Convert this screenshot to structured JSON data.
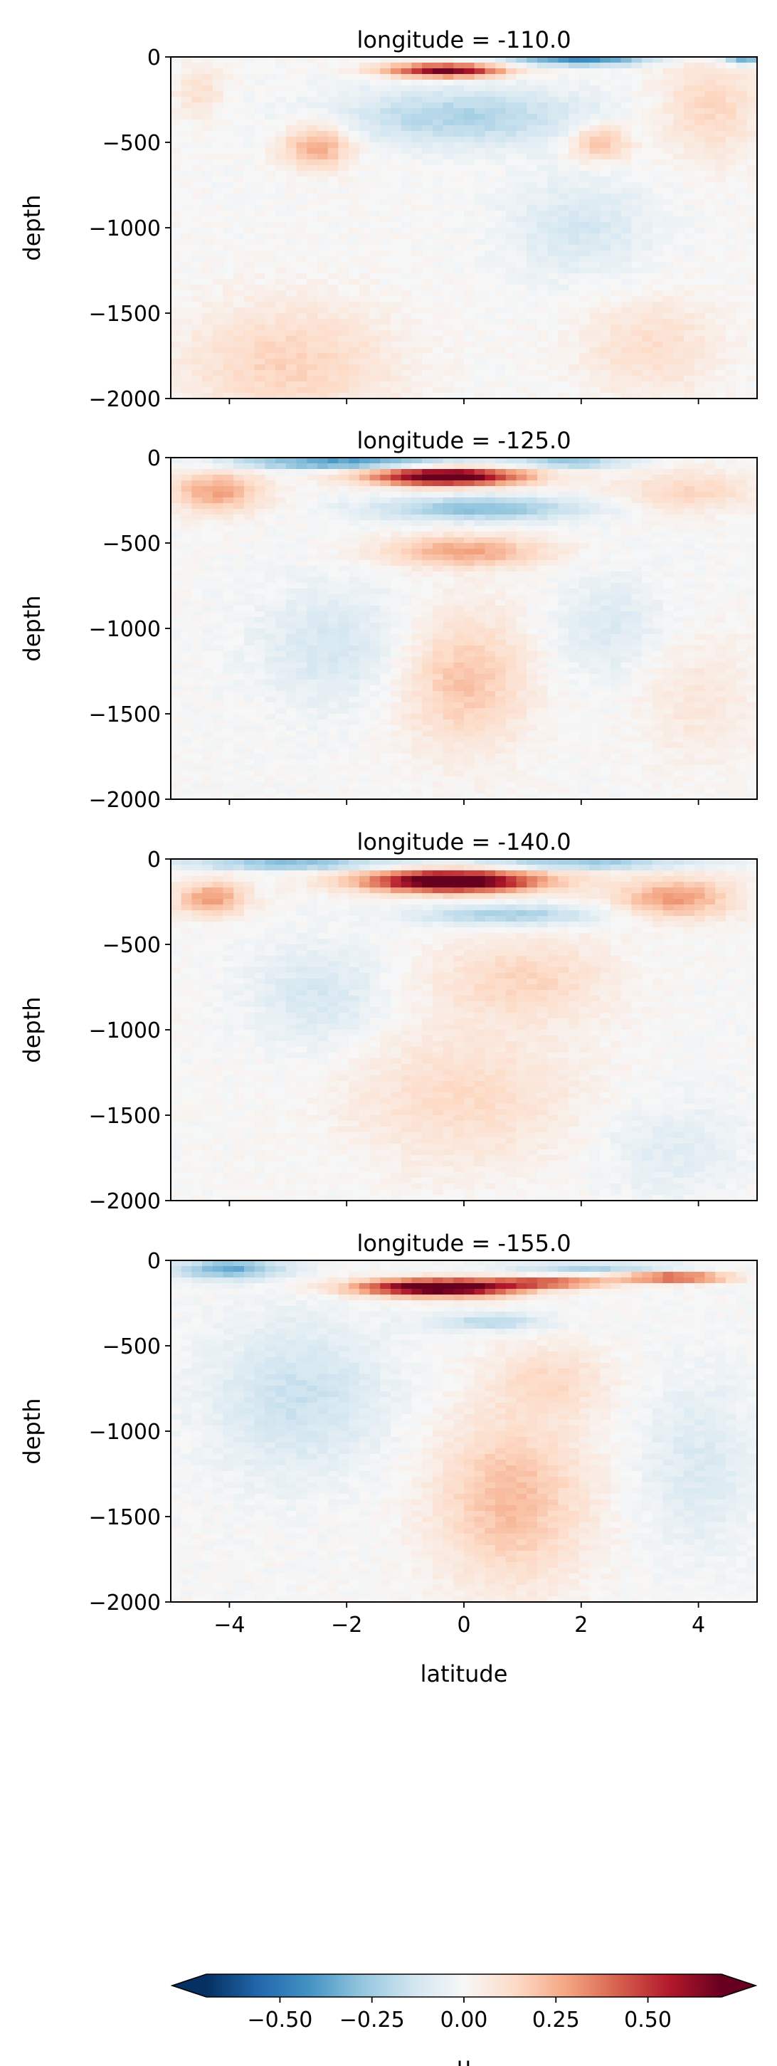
{
  "chart_data": {
    "type": "heatmap",
    "variable": "u",
    "x": {
      "label": "latitude",
      "range": [
        -5,
        5
      ],
      "ticks": [
        -4,
        -2,
        0,
        2,
        4
      ],
      "tick_labels": [
        "−4",
        "−2",
        "0",
        "2",
        "4"
      ]
    },
    "y": {
      "label": "depth",
      "range": [
        -2000,
        0
      ],
      "ticks": [
        0,
        -500,
        -1000,
        -1500,
        -2000
      ],
      "tick_labels": [
        "0",
        "−500",
        "−1000",
        "−1500",
        "−2000"
      ]
    },
    "panels": [
      {
        "title": "longitude = -110.0",
        "longitude": -110.0,
        "features": [
          {
            "kind": "core",
            "lat": -0.3,
            "depth": -80,
            "lat_radius": 1.0,
            "depth_radius": 40,
            "u": 0.7
          },
          {
            "kind": "blob",
            "lat": 0.0,
            "depth": -350,
            "lat_radius": 2.2,
            "depth_radius": 170,
            "u": -0.22
          },
          {
            "kind": "blob",
            "lat": 2.0,
            "depth": -25,
            "lat_radius": 1.2,
            "depth_radius": 25,
            "u": -0.5
          },
          {
            "kind": "blob",
            "lat": 4.8,
            "depth": -25,
            "lat_radius": 0.4,
            "depth_radius": 20,
            "u": -0.45
          },
          {
            "kind": "blob",
            "lat": -2.5,
            "depth": -520,
            "lat_radius": 0.6,
            "depth_radius": 130,
            "u": 0.28
          },
          {
            "kind": "blob",
            "lat": 2.3,
            "depth": -500,
            "lat_radius": 0.5,
            "depth_radius": 110,
            "u": 0.25
          },
          {
            "kind": "blob",
            "lat": 4.2,
            "depth": -300,
            "lat_radius": 0.9,
            "depth_radius": 300,
            "u": 0.15
          },
          {
            "kind": "blob",
            "lat": -4.5,
            "depth": -200,
            "lat_radius": 0.4,
            "depth_radius": 150,
            "u": 0.12
          },
          {
            "kind": "blob",
            "lat": -3.0,
            "depth": -1800,
            "lat_radius": 1.8,
            "depth_radius": 350,
            "u": 0.16
          },
          {
            "kind": "blob",
            "lat": 2.0,
            "depth": -1000,
            "lat_radius": 1.2,
            "depth_radius": 300,
            "u": -0.12
          },
          {
            "kind": "blob",
            "lat": 3.2,
            "depth": -1700,
            "lat_radius": 1.2,
            "depth_radius": 300,
            "u": 0.12
          }
        ]
      },
      {
        "title": "longitude = -125.0",
        "longitude": -125.0,
        "features": [
          {
            "kind": "core",
            "lat": -0.3,
            "depth": -110,
            "lat_radius": 1.3,
            "depth_radius": 55,
            "u": 0.8
          },
          {
            "kind": "blob",
            "lat": -2.0,
            "depth": -30,
            "lat_radius": 2.0,
            "depth_radius": 35,
            "u": -0.45
          },
          {
            "kind": "blob",
            "lat": 1.8,
            "depth": -30,
            "lat_radius": 1.0,
            "depth_radius": 30,
            "u": -0.3
          },
          {
            "kind": "blob",
            "lat": 0.3,
            "depth": -300,
            "lat_radius": 1.8,
            "depth_radius": 70,
            "u": -0.3
          },
          {
            "kind": "blob",
            "lat": 0.0,
            "depth": -550,
            "lat_radius": 1.4,
            "depth_radius": 90,
            "u": 0.28
          },
          {
            "kind": "blob",
            "lat": -4.2,
            "depth": -200,
            "lat_radius": 0.8,
            "depth_radius": 120,
            "u": 0.28
          },
          {
            "kind": "blob",
            "lat": 3.8,
            "depth": -200,
            "lat_radius": 1.2,
            "depth_radius": 120,
            "u": 0.15
          },
          {
            "kind": "blob",
            "lat": -2.2,
            "depth": -1100,
            "lat_radius": 1.3,
            "depth_radius": 350,
            "u": -0.12
          },
          {
            "kind": "blob",
            "lat": 0.0,
            "depth": -1300,
            "lat_radius": 1.1,
            "depth_radius": 400,
            "u": 0.2
          },
          {
            "kind": "blob",
            "lat": 2.5,
            "depth": -1000,
            "lat_radius": 1.0,
            "depth_radius": 300,
            "u": -0.1
          },
          {
            "kind": "blob",
            "lat": 4.0,
            "depth": -1400,
            "lat_radius": 1.0,
            "depth_radius": 400,
            "u": 0.08
          }
        ]
      },
      {
        "title": "longitude = -140.0",
        "longitude": -140.0,
        "features": [
          {
            "kind": "core",
            "lat": -0.2,
            "depth": -130,
            "lat_radius": 1.5,
            "depth_radius": 65,
            "u": 0.85
          },
          {
            "kind": "blob",
            "lat": -3.0,
            "depth": -30,
            "lat_radius": 1.8,
            "depth_radius": 30,
            "u": -0.35
          },
          {
            "kind": "blob",
            "lat": 2.0,
            "depth": -30,
            "lat_radius": 2.0,
            "depth_radius": 25,
            "u": -0.35
          },
          {
            "kind": "blob",
            "lat": 0.8,
            "depth": -330,
            "lat_radius": 1.6,
            "depth_radius": 60,
            "u": -0.25
          },
          {
            "kind": "blob",
            "lat": -4.3,
            "depth": -230,
            "lat_radius": 0.6,
            "depth_radius": 100,
            "u": 0.3
          },
          {
            "kind": "blob",
            "lat": 3.6,
            "depth": -230,
            "lat_radius": 1.0,
            "depth_radius": 120,
            "u": 0.3
          },
          {
            "kind": "blob",
            "lat": 1.0,
            "depth": -700,
            "lat_radius": 1.5,
            "depth_radius": 250,
            "u": 0.15
          },
          {
            "kind": "blob",
            "lat": -2.5,
            "depth": -800,
            "lat_radius": 1.1,
            "depth_radius": 300,
            "u": -0.12
          },
          {
            "kind": "blob",
            "lat": 0.0,
            "depth": -1400,
            "lat_radius": 2.0,
            "depth_radius": 400,
            "u": 0.13
          },
          {
            "kind": "blob",
            "lat": 3.5,
            "depth": -1700,
            "lat_radius": 1.2,
            "depth_radius": 300,
            "u": -0.08
          }
        ]
      },
      {
        "title": "longitude = -155.0",
        "longitude": -155.0,
        "features": [
          {
            "kind": "core",
            "lat": -0.4,
            "depth": -160,
            "lat_radius": 1.4,
            "depth_radius": 50,
            "u": 0.85
          },
          {
            "kind": "blob",
            "lat": 1.5,
            "depth": -130,
            "lat_radius": 1.0,
            "depth_radius": 25,
            "u": 0.45
          },
          {
            "kind": "blob",
            "lat": 3.6,
            "depth": -100,
            "lat_radius": 0.9,
            "depth_radius": 30,
            "u": 0.5
          },
          {
            "kind": "blob",
            "lat": -4.0,
            "depth": -50,
            "lat_radius": 0.9,
            "depth_radius": 60,
            "u": -0.35
          },
          {
            "kind": "blob",
            "lat": 2.2,
            "depth": -40,
            "lat_radius": 1.5,
            "depth_radius": 25,
            "u": -0.25
          },
          {
            "kind": "blob",
            "lat": -2.8,
            "depth": -800,
            "lat_radius": 1.5,
            "depth_radius": 450,
            "u": -0.15
          },
          {
            "kind": "blob",
            "lat": 0.8,
            "depth": -1400,
            "lat_radius": 1.3,
            "depth_radius": 500,
            "u": 0.22
          },
          {
            "kind": "blob",
            "lat": 1.5,
            "depth": -700,
            "lat_radius": 1.0,
            "depth_radius": 200,
            "u": 0.12
          },
          {
            "kind": "blob",
            "lat": 4.0,
            "depth": -1200,
            "lat_radius": 1.0,
            "depth_radius": 500,
            "u": -0.1
          },
          {
            "kind": "blob",
            "lat": 0.5,
            "depth": -360,
            "lat_radius": 1.0,
            "depth_radius": 50,
            "u": -0.2
          }
        ]
      }
    ],
    "colorbar": {
      "label": "u",
      "colormap": "RdBu_r",
      "range": [
        -0.7,
        0.7
      ],
      "ticks": [
        -0.5,
        -0.25,
        0.0,
        0.25,
        0.5
      ],
      "tick_labels": [
        "−0.50",
        "−0.25",
        "0.00",
        "0.25",
        "0.50"
      ],
      "extend": "both",
      "orientation": "horizontal",
      "colors": [
        "#053061",
        "#2166ac",
        "#4393c3",
        "#92c5de",
        "#d1e5f0",
        "#f7f7f7",
        "#fddbc7",
        "#f4a582",
        "#d6604d",
        "#b2182b",
        "#67001f"
      ]
    },
    "grid": false
  }
}
